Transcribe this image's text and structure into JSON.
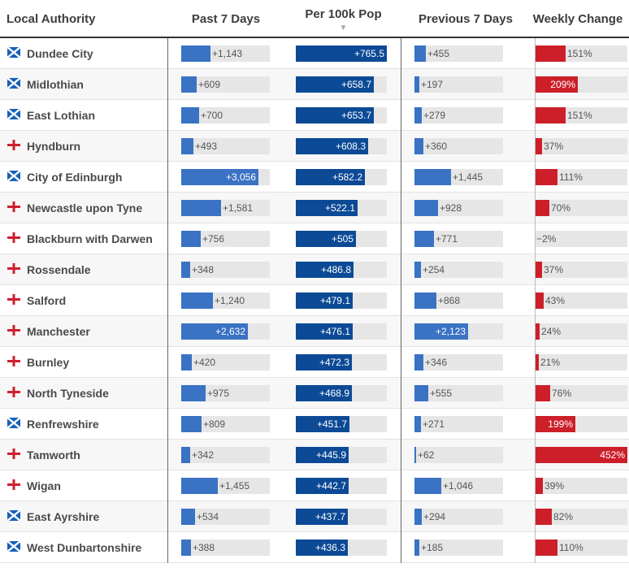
{
  "colors": {
    "past_bar": "#3a72c4",
    "per_bar": "#0c4a96",
    "prev_bar": "#3a72c4",
    "change_bar": "#cc1f2a",
    "track": "#e6e6e6"
  },
  "headers": {
    "local_authority": "Local Authority",
    "past_7_days": "Past 7 Days",
    "per_100k": "Per 100k Pop",
    "sort_arrow": "▼",
    "previous_7_days": "Previous 7 Days",
    "weekly_change": "Weekly Change"
  },
  "chart_data": {
    "type": "table",
    "columns": [
      "Local Authority",
      "Past 7 Days",
      "Per 100k Pop",
      "Previous 7 Days",
      "Weekly Change"
    ],
    "sorted_by": "Per 100k Pop",
    "scales": {
      "cases_max": 3500,
      "per_max": 765.5,
      "change_max": 452
    },
    "rows": [
      {
        "name": "Dundee City",
        "flag": "scotland-flag-icon",
        "past": 1143,
        "past_label": "+1,143",
        "per": 765.5,
        "per_label": "+765.5",
        "prev": 455,
        "prev_label": "+455",
        "change": 151,
        "change_label": "151%"
      },
      {
        "name": "Midlothian",
        "flag": "scotland-flag-icon",
        "past": 609,
        "past_label": "+609",
        "per": 658.7,
        "per_label": "+658.7",
        "prev": 197,
        "prev_label": "+197",
        "change": 209,
        "change_label": "209%"
      },
      {
        "name": "East Lothian",
        "flag": "scotland-flag-icon",
        "past": 700,
        "past_label": "+700",
        "per": 653.7,
        "per_label": "+653.7",
        "prev": 279,
        "prev_label": "+279",
        "change": 151,
        "change_label": "151%"
      },
      {
        "name": "Hyndburn",
        "flag": "england-flag-icon",
        "past": 493,
        "past_label": "+493",
        "per": 608.3,
        "per_label": "+608.3",
        "prev": 360,
        "prev_label": "+360",
        "change": 37,
        "change_label": "37%"
      },
      {
        "name": "City of Edinburgh",
        "flag": "scotland-flag-icon",
        "past": 3056,
        "past_label": "+3,056",
        "per": 582.2,
        "per_label": "+582.2",
        "prev": 1445,
        "prev_label": "+1,445",
        "change": 111,
        "change_label": "111%"
      },
      {
        "name": "Newcastle upon Tyne",
        "flag": "england-flag-icon",
        "past": 1581,
        "past_label": "+1,581",
        "per": 522.1,
        "per_label": "+522.1",
        "prev": 928,
        "prev_label": "+928",
        "change": 70,
        "change_label": "70%"
      },
      {
        "name": "Blackburn with Darwen",
        "flag": "england-flag-icon",
        "past": 756,
        "past_label": "+756",
        "per": 505,
        "per_label": "+505",
        "prev": 771,
        "prev_label": "+771",
        "change": -2,
        "change_label": "−2%"
      },
      {
        "name": "Rossendale",
        "flag": "england-flag-icon",
        "past": 348,
        "past_label": "+348",
        "per": 486.8,
        "per_label": "+486.8",
        "prev": 254,
        "prev_label": "+254",
        "change": 37,
        "change_label": "37%"
      },
      {
        "name": "Salford",
        "flag": "england-flag-icon",
        "past": 1240,
        "past_label": "+1,240",
        "per": 479.1,
        "per_label": "+479.1",
        "prev": 868,
        "prev_label": "+868",
        "change": 43,
        "change_label": "43%"
      },
      {
        "name": "Manchester",
        "flag": "england-flag-icon",
        "past": 2632,
        "past_label": "+2,632",
        "per": 476.1,
        "per_label": "+476.1",
        "prev": 2123,
        "prev_label": "+2,123",
        "change": 24,
        "change_label": "24%"
      },
      {
        "name": "Burnley",
        "flag": "england-flag-icon",
        "past": 420,
        "past_label": "+420",
        "per": 472.3,
        "per_label": "+472.3",
        "prev": 346,
        "prev_label": "+346",
        "change": 21,
        "change_label": "21%"
      },
      {
        "name": "North Tyneside",
        "flag": "england-flag-icon",
        "past": 975,
        "past_label": "+975",
        "per": 468.9,
        "per_label": "+468.9",
        "prev": 555,
        "prev_label": "+555",
        "change": 76,
        "change_label": "76%"
      },
      {
        "name": "Renfrewshire",
        "flag": "scotland-flag-icon",
        "past": 809,
        "past_label": "+809",
        "per": 451.7,
        "per_label": "+451.7",
        "prev": 271,
        "prev_label": "+271",
        "change": 199,
        "change_label": "199%"
      },
      {
        "name": "Tamworth",
        "flag": "england-flag-icon",
        "past": 342,
        "past_label": "+342",
        "per": 445.9,
        "per_label": "+445.9",
        "prev": 62,
        "prev_label": "+62",
        "change": 452,
        "change_label": "452%"
      },
      {
        "name": "Wigan",
        "flag": "england-flag-icon",
        "past": 1455,
        "past_label": "+1,455",
        "per": 442.7,
        "per_label": "+442.7",
        "prev": 1046,
        "prev_label": "+1,046",
        "change": 39,
        "change_label": "39%"
      },
      {
        "name": "East Ayrshire",
        "flag": "scotland-flag-icon",
        "past": 534,
        "past_label": "+534",
        "per": 437.7,
        "per_label": "+437.7",
        "prev": 294,
        "prev_label": "+294",
        "change": 82,
        "change_label": "82%"
      },
      {
        "name": "West Dunbartonshire",
        "flag": "scotland-flag-icon",
        "past": 388,
        "past_label": "+388",
        "per": 436.3,
        "per_label": "+436.3",
        "prev": 185,
        "prev_label": "+185",
        "change": 110,
        "change_label": "110%"
      }
    ]
  }
}
